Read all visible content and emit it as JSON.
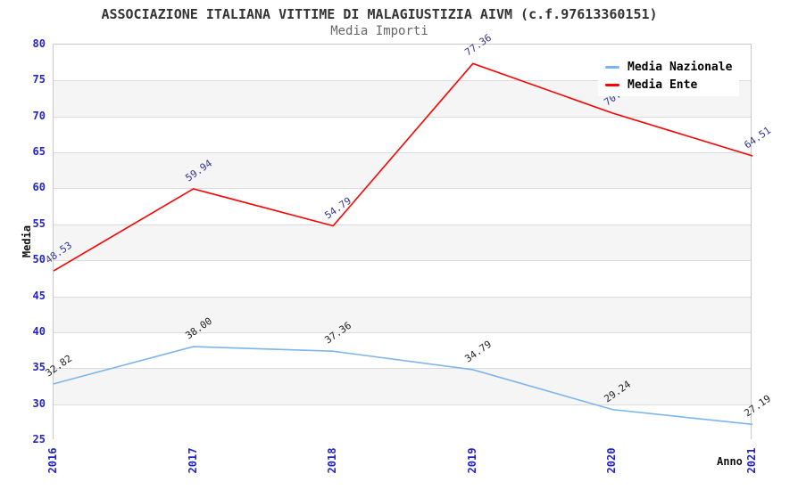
{
  "chart_data": {
    "type": "line",
    "title": "ASSOCIAZIONE ITALIANA VITTIME DI MALAGIUSTIZIA AIVM (c.f.97613360151)",
    "subtitle": "Media Importi",
    "xlabel": "Anno",
    "ylabel": "Media",
    "categories": [
      "2016",
      "2017",
      "2018",
      "2019",
      "2020",
      "2021"
    ],
    "series": [
      {
        "name": "Media Nazionale",
        "color": "#7cb5ec",
        "label_color": "#222222",
        "values": [
          32.82,
          38.0,
          37.36,
          34.79,
          29.24,
          27.19
        ]
      },
      {
        "name": "Media Ente",
        "color": "#ff0000",
        "label_color": "#333399",
        "values": [
          48.53,
          59.94,
          54.79,
          77.36,
          70.46,
          64.51
        ]
      }
    ],
    "ylim": [
      25,
      80
    ],
    "ytick_step": 5,
    "grid": true,
    "legend_position": "top-right",
    "band_colors": [
      "#ffffff",
      "#f5f5f5"
    ],
    "tick_label_color": "#2222cc",
    "gridline_color": "#dcdcdc"
  }
}
